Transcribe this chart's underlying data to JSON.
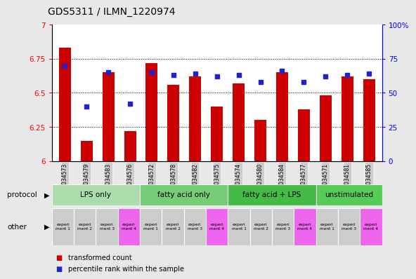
{
  "title": "GDS5311 / ILMN_1220974",
  "samples": [
    "GSM1034573",
    "GSM1034579",
    "GSM1034583",
    "GSM1034576",
    "GSM1034572",
    "GSM1034578",
    "GSM1034582",
    "GSM1034575",
    "GSM1034574",
    "GSM1034580",
    "GSM1034584",
    "GSM1034577",
    "GSM1034571",
    "GSM1034581",
    "GSM1034585"
  ],
  "transformed_count": [
    6.83,
    6.15,
    6.65,
    6.22,
    6.72,
    6.56,
    6.62,
    6.4,
    6.57,
    6.3,
    6.65,
    6.38,
    6.48,
    6.62,
    6.6
  ],
  "percentile_rank": [
    70,
    40,
    65,
    42,
    65,
    63,
    64,
    62,
    63,
    58,
    66,
    58,
    62,
    63,
    64
  ],
  "ylim_left": [
    6.0,
    7.0
  ],
  "ylim_right": [
    0,
    100
  ],
  "yticks_left": [
    6.0,
    6.25,
    6.5,
    6.75,
    7.0
  ],
  "ytick_labels_left": [
    "6",
    "6.25",
    "6.5",
    "6.75",
    "7"
  ],
  "yticks_right": [
    0,
    25,
    50,
    75,
    100
  ],
  "ytick_labels_right": [
    "0",
    "25",
    "50",
    "75",
    "100%"
  ],
  "bar_color": "#cc0000",
  "dot_color": "#2222cc",
  "protocol_groups": [
    {
      "label": "LPS only",
      "start": 0,
      "end": 4,
      "color": "#aaddaa"
    },
    {
      "label": "fatty acid only",
      "start": 4,
      "end": 8,
      "color": "#77cc77"
    },
    {
      "label": "fatty acid + LPS",
      "start": 8,
      "end": 12,
      "color": "#44bb44"
    },
    {
      "label": "unstimulated",
      "start": 12,
      "end": 15,
      "color": "#55cc55"
    }
  ],
  "other_colors": [
    "#cccccc",
    "#cccccc",
    "#cccccc",
    "#ee66ee",
    "#cccccc",
    "#cccccc",
    "#cccccc",
    "#ee66ee",
    "#cccccc",
    "#cccccc",
    "#cccccc",
    "#ee66ee",
    "#cccccc",
    "#cccccc",
    "#ee66ee"
  ],
  "other_labels": [
    "experi\nment 1",
    "experi\nment 2",
    "experi\nment 3",
    "experi\nment 4",
    "experi\nment 1",
    "experi\nment 2",
    "experi\nment 3",
    "experi\nment 4",
    "experi\nment 1",
    "experi\nment 2",
    "experi\nment 3",
    "experi\nment 4",
    "experi\nment 1",
    "experi\nment 3",
    "experi\nment 4"
  ],
  "protocol_label": "protocol",
  "other_label": "other",
  "legend_bar_label": "transformed count",
  "legend_dot_label": "percentile rank within the sample",
  "bg_color": "#e8e8e8",
  "plot_bg_color": "#ffffff",
  "xticklabel_bg": "#cccccc"
}
